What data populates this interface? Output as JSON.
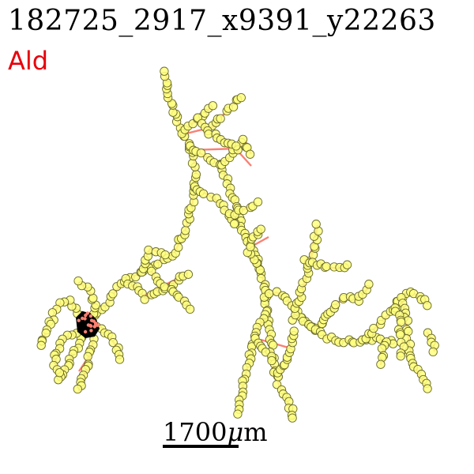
{
  "header": {
    "title": "182725_2917_x9391_y22263",
    "label": "Ald"
  },
  "scalebar": {
    "value": "1700",
    "unit_symbol": "μ",
    "unit_suffix": "m"
  },
  "colors": {
    "label": "#e8000b",
    "edge": "#fa8072",
    "node_fill": "#ffff80",
    "node_stroke": "#6b6b2a",
    "soma": "#000000"
  }
}
